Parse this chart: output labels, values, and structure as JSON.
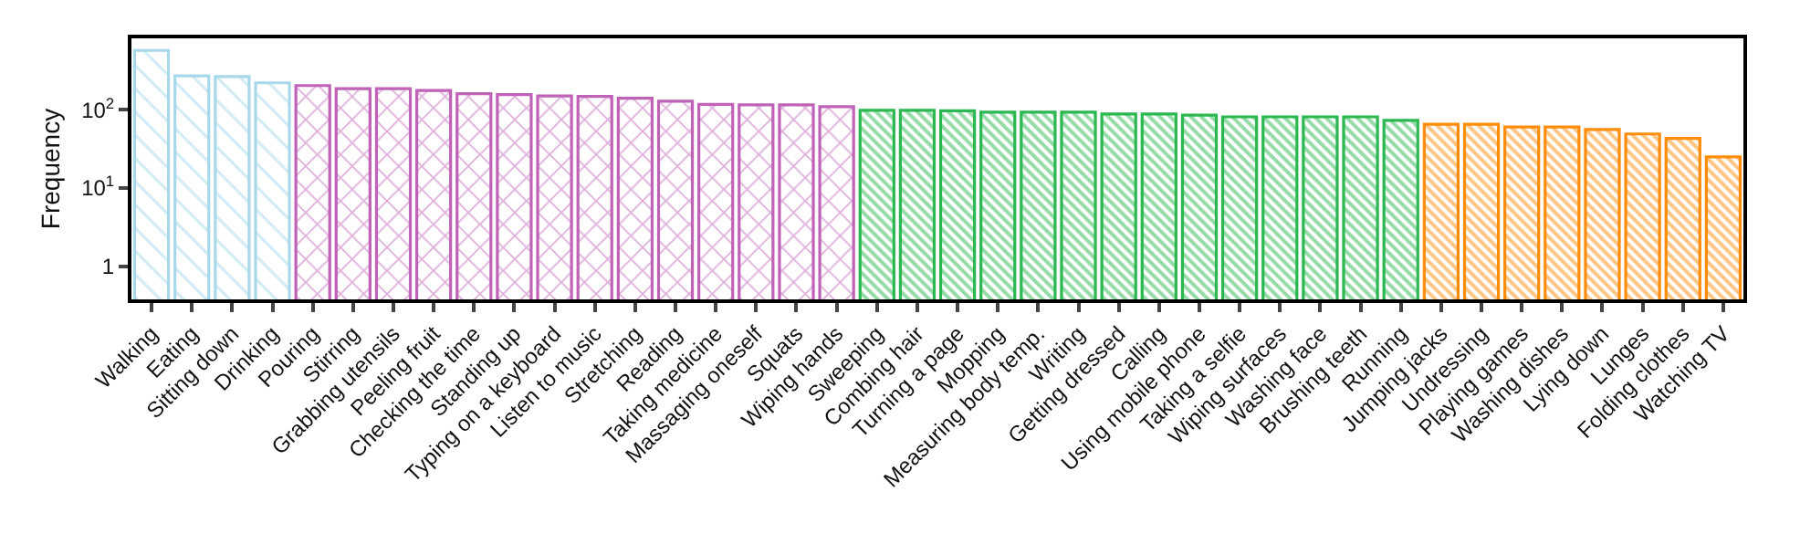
{
  "chart_data": {
    "type": "bar",
    "ylabel": "Frequency",
    "categories": [
      "Walking",
      "Eating",
      "Sitting down",
      "Drinking",
      "Pouring",
      "Stirring",
      "Grabbing utensils",
      "Peeling fruit",
      "Checking the time",
      "Standing up",
      "Typing on a keyboard",
      "Listen to music",
      "Stretching",
      "Reading",
      "Taking medicine",
      "Massaging oneself",
      "Squats",
      "Wiping hands",
      "Sweeping",
      "Combing hair",
      "Turning a page",
      "Mopping",
      "Measuring body temp.",
      "Writing",
      "Getting dressed",
      "Calling",
      "Using mobile phone",
      "Taking a selfie",
      "Wiping surfaces",
      "Washing face",
      "Brushing teeth",
      "Running",
      "Jumping jacks",
      "Undressing",
      "Playing games",
      "Washing dishes",
      "Lying down",
      "Lunges",
      "Folding clothes",
      "Watching TV"
    ],
    "series": [
      {
        "color": "#a8d8ea",
        "values": [
          570,
          270,
          265,
          220,
          null,
          null,
          null,
          null,
          null,
          null,
          null,
          null,
          null,
          null,
          null,
          null,
          null,
          null,
          null,
          null,
          null,
          null,
          null,
          null,
          null,
          null,
          null,
          null,
          null,
          null,
          null,
          null,
          null,
          null,
          null,
          null,
          null,
          null,
          null,
          null
        ]
      },
      {
        "color": "#c062b8",
        "values": [
          null,
          null,
          null,
          null,
          203,
          185,
          185,
          176,
          160,
          156,
          150,
          148,
          140,
          128,
          117,
          115,
          115,
          109,
          null,
          null,
          null,
          null,
          null,
          null,
          null,
          null,
          null,
          null,
          null,
          null,
          null,
          null,
          null,
          null,
          null,
          null,
          null,
          null,
          null,
          null
        ]
      },
      {
        "color": "#2bb850",
        "values": [
          null,
          null,
          null,
          null,
          null,
          null,
          null,
          null,
          null,
          null,
          null,
          null,
          null,
          null,
          null,
          null,
          null,
          null,
          98,
          98,
          97,
          93,
          93,
          93,
          88,
          88,
          85,
          81,
          81,
          81,
          81,
          73,
          null,
          null,
          null,
          null,
          null,
          null,
          null,
          null
        ]
      },
      {
        "color": "#ff8c0a",
        "values": [
          null,
          null,
          null,
          null,
          null,
          null,
          null,
          null,
          null,
          null,
          null,
          null,
          null,
          null,
          null,
          null,
          null,
          null,
          null,
          null,
          null,
          null,
          null,
          null,
          null,
          null,
          null,
          null,
          null,
          null,
          null,
          null,
          65,
          65,
          60,
          60,
          56,
          49,
          43,
          25
        ]
      }
    ],
    "log": true,
    "ylim": [
      0.38,
      813
    ],
    "yticks": [
      1,
      {
        "value": 10,
        "label": "10$^{1}$"
      },
      {
        "value": 100,
        "label": "10$^{2}$"
      }
    ],
    "tick_labels": true
  }
}
